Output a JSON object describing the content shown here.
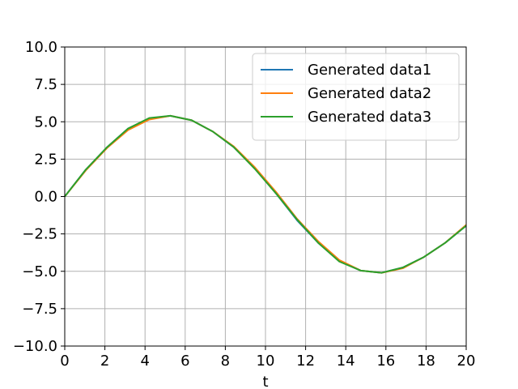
{
  "chart_data": {
    "type": "line",
    "title": "",
    "xlabel": "t",
    "ylabel": "",
    "xlim": [
      0,
      20
    ],
    "ylim": [
      -10,
      10
    ],
    "x_ticks": [
      0,
      2,
      4,
      6,
      8,
      10,
      12,
      14,
      16,
      18,
      20
    ],
    "y_ticks": [
      -10.0,
      -7.5,
      -5.0,
      -2.5,
      0.0,
      2.5,
      5.0,
      7.5,
      10.0
    ],
    "x_tick_labels": [
      "0",
      "2",
      "4",
      "6",
      "8",
      "10",
      "12",
      "14",
      "16",
      "18",
      "20"
    ],
    "y_tick_labels": [
      "−10.0",
      "−7.5",
      "−5.0",
      "−2.5",
      "0.0",
      "2.5",
      "5.0",
      "7.5",
      "10.0"
    ],
    "grid": true,
    "legend_position": "top-right",
    "x": [
      0.0,
      1.05,
      2.11,
      3.16,
      4.21,
      5.26,
      6.32,
      7.37,
      8.42,
      9.47,
      10.53,
      11.58,
      12.63,
      13.68,
      14.74,
      15.79,
      16.84,
      17.89,
      18.95,
      20.0
    ],
    "series": [
      {
        "name": "Generated data1",
        "color": "#1f77b4",
        "values": [
          0.0,
          1.8,
          3.3,
          4.55,
          5.2,
          5.4,
          5.1,
          4.35,
          3.3,
          1.9,
          0.2,
          -1.6,
          -3.1,
          -4.3,
          -4.95,
          -5.1,
          -4.75,
          -4.05,
          -3.1,
          -1.95
        ]
      },
      {
        "name": "Generated data2",
        "color": "#ff7f0e",
        "values": [
          0.0,
          1.75,
          3.25,
          4.45,
          5.15,
          5.4,
          5.1,
          4.35,
          3.35,
          1.95,
          0.3,
          -1.5,
          -3.0,
          -4.25,
          -4.95,
          -5.1,
          -4.8,
          -4.05,
          -3.1,
          -1.9
        ]
      },
      {
        "name": "Generated data3",
        "color": "#2ca02c",
        "values": [
          0.0,
          1.8,
          3.3,
          4.55,
          5.25,
          5.4,
          5.1,
          4.35,
          3.3,
          1.85,
          0.2,
          -1.55,
          -3.1,
          -4.35,
          -4.95,
          -5.1,
          -4.75,
          -4.05,
          -3.1,
          -1.95
        ]
      }
    ]
  }
}
